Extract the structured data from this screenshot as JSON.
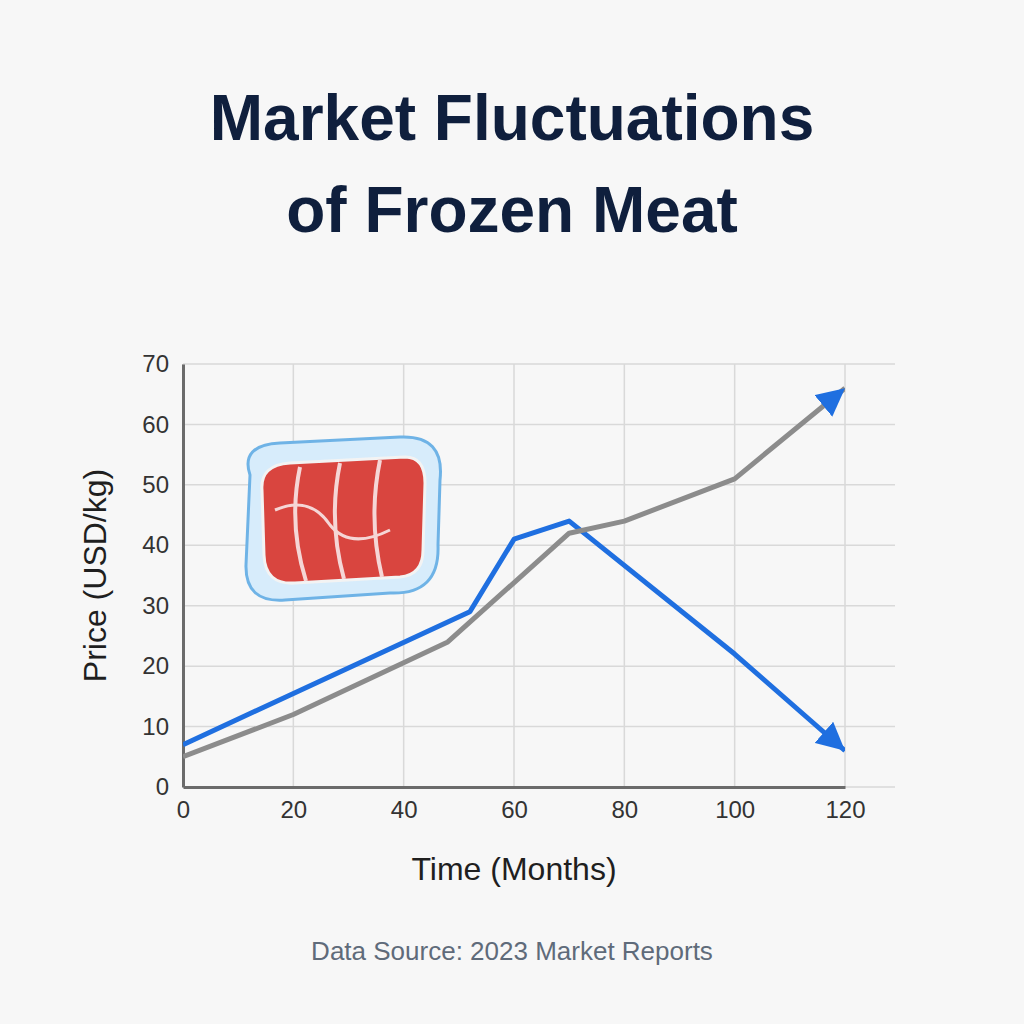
{
  "chart_data": {
    "type": "line",
    "title": [
      "Market Fluctuations",
      "of Frozen Meat"
    ],
    "x_label": "Time (Months)",
    "y_label": "Price (USD/kg)",
    "source": "Data Source: 2023 Market Reports",
    "xlim": [
      0,
      120
    ],
    "xticks": [
      0,
      20,
      40,
      60,
      80,
      100,
      120
    ],
    "ylim": [
      0,
      70
    ],
    "yticks": [
      0,
      10,
      20,
      30,
      40,
      50,
      60,
      70
    ],
    "grid": true,
    "series": [
      {
        "color": "#1f6fe0",
        "marker": "arrow",
        "x": [
          0,
          52,
          60,
          70,
          100,
          120
        ],
        "values": [
          7,
          29,
          41,
          44,
          22,
          6
        ]
      },
      {
        "color": "#8c8c8c",
        "marker": "arrow",
        "x": [
          0,
          20,
          48,
          70,
          80,
          100,
          120
        ],
        "values": [
          5,
          12,
          24,
          42,
          44,
          51,
          66
        ]
      }
    ]
  }
}
